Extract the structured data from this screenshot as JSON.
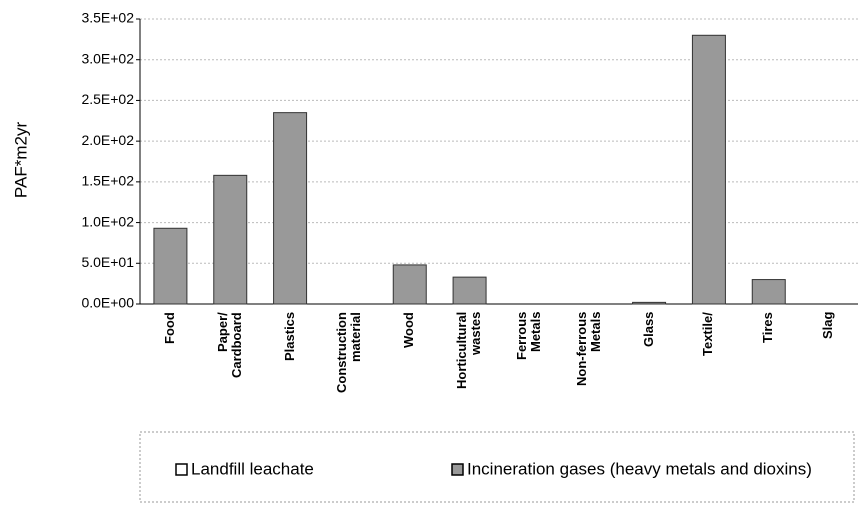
{
  "chart_data": {
    "type": "bar",
    "y_label": "PAF*m2yr",
    "categories": [
      "Food",
      "Paper/ Cardboard",
      "Plastics",
      "Construction material",
      "Wood",
      "Horticultural wastes",
      "Ferrous Metals",
      "Non-ferrous Metals",
      "Glass",
      "Textile/",
      "Tires",
      "Slag"
    ],
    "series": [
      {
        "name": "Landfill leachate",
        "color": "#ffffff",
        "values": [
          0,
          0,
          0,
          0,
          0,
          0,
          0,
          0,
          0,
          0,
          0,
          0
        ]
      },
      {
        "name": "Incineration gases (heavy metals and dioxins)",
        "color": "#999999",
        "values": [
          93,
          158,
          235,
          0,
          48,
          33,
          0,
          0,
          2,
          330,
          30,
          0
        ]
      }
    ],
    "ylim": [
      0,
      350
    ],
    "yticks": [
      {
        "value": 0,
        "label": "0.0E+00"
      },
      {
        "value": 50,
        "label": "5.0E+01"
      },
      {
        "value": 100,
        "label": "1.0E+02"
      },
      {
        "value": 150,
        "label": "1.5E+02"
      },
      {
        "value": 200,
        "label": "2.0E+02"
      },
      {
        "value": 250,
        "label": "2.5E+02"
      },
      {
        "value": 300,
        "label": "3.0E+02"
      },
      {
        "value": 350,
        "label": "3.5E+02"
      }
    ],
    "grid": true
  }
}
